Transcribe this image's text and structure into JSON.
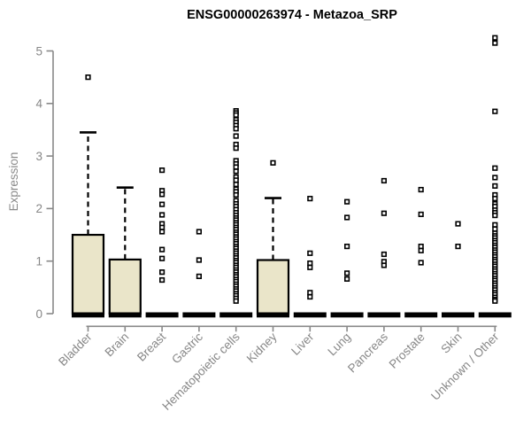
{
  "chart_data": {
    "type": "boxplot",
    "title": "ENSG00000263974 - Metazoa_SRP",
    "ylabel": "Expression",
    "xlabel": "",
    "ylim": [
      0,
      5
    ],
    "yticks": [
      0,
      1,
      2,
      3,
      4,
      5
    ],
    "grid": false,
    "legend": false,
    "categories": [
      "Bladder",
      "Brain",
      "Breast",
      "Gastric",
      "Hematopoietic cells",
      "Kidney",
      "Liver",
      "Lung",
      "Pancreas",
      "Prostate",
      "Skin",
      "Unknown / Other"
    ],
    "colors": {
      "box_fill": "#EAE5C9",
      "box_border": "#000000",
      "median": "#000000",
      "axis": "#888888",
      "text": "#878787",
      "title": "#000000",
      "background": "#ffffff"
    },
    "boxes": [
      {
        "category": "Bladder",
        "q1": 0,
        "median": 0,
        "q3": 1.5,
        "whisker_low": 0,
        "whisker_high": 3.45,
        "outliers": [
          4.5
        ]
      },
      {
        "category": "Brain",
        "q1": 0,
        "median": 0,
        "q3": 1.03,
        "whisker_low": 0,
        "whisker_high": 2.4,
        "outliers": []
      },
      {
        "category": "Breast",
        "q1": 0,
        "median": 0,
        "q3": 0,
        "whisker_low": 0,
        "whisker_high": 0,
        "outliers": [
          2.73,
          2.34,
          2.27,
          2.08,
          1.88,
          1.71,
          1.64,
          1.56,
          1.22,
          1.05,
          0.79,
          0.64
        ]
      },
      {
        "category": "Gastric",
        "q1": 0,
        "median": 0,
        "q3": 0,
        "whisker_low": 0,
        "whisker_high": 0,
        "outliers": [
          1.56,
          1.02,
          0.71
        ]
      },
      {
        "category": "Hematopoietic cells",
        "q1": 0,
        "median": 0,
        "q3": 0,
        "whisker_low": 0,
        "whisker_high": 0,
        "outliers": [
          3.86,
          3.82,
          3.78,
          3.69,
          3.64,
          3.58,
          3.52,
          3.38,
          3.22,
          3.15,
          2.91,
          2.85,
          2.79,
          2.71,
          2.6,
          2.54,
          2.46,
          2.37,
          2.32,
          2.26,
          2.15,
          2.09,
          2.04,
          1.98,
          1.92,
          1.87,
          1.82,
          1.78,
          1.73,
          1.69,
          1.64,
          1.6,
          1.55,
          1.51,
          1.46,
          1.42,
          1.37,
          1.33,
          1.28,
          1.24,
          1.19,
          1.15,
          1.1,
          1.06,
          1.01,
          0.97,
          0.92,
          0.88,
          0.83,
          0.79,
          0.74,
          0.7,
          0.65,
          0.61,
          0.56,
          0.52,
          0.47,
          0.43,
          0.38,
          0.34,
          0.29,
          0.24
        ]
      },
      {
        "category": "Kidney",
        "q1": 0,
        "median": 0,
        "q3": 1.02,
        "whisker_low": 0,
        "whisker_high": 2.2,
        "outliers": [
          2.87
        ]
      },
      {
        "category": "Liver",
        "q1": 0,
        "median": 0,
        "q3": 0,
        "whisker_low": 0,
        "whisker_high": 0,
        "outliers": [
          2.19,
          1.15,
          0.96,
          0.88,
          0.4,
          0.32
        ]
      },
      {
        "category": "Lung",
        "q1": 0,
        "median": 0,
        "q3": 0,
        "whisker_low": 0,
        "whisker_high": 0,
        "outliers": [
          2.13,
          1.83,
          1.28,
          0.77,
          0.66
        ]
      },
      {
        "category": "Pancreas",
        "q1": 0,
        "median": 0,
        "q3": 0,
        "whisker_low": 0,
        "whisker_high": 0,
        "outliers": [
          2.53,
          1.91,
          1.13,
          0.99,
          0.92
        ]
      },
      {
        "category": "Prostate",
        "q1": 0,
        "median": 0,
        "q3": 0,
        "whisker_low": 0,
        "whisker_high": 0,
        "outliers": [
          2.36,
          1.89,
          1.28,
          1.2,
          0.97
        ]
      },
      {
        "category": "Skin",
        "q1": 0,
        "median": 0,
        "q3": 0,
        "whisker_low": 0,
        "whisker_high": 0,
        "outliers": [
          1.71,
          1.28
        ]
      },
      {
        "category": "Unknown / Other",
        "q1": 0,
        "median": 0,
        "q3": 0,
        "whisker_low": 0,
        "whisker_high": 0,
        "outliers": [
          5.25,
          5.15,
          3.85,
          2.77,
          2.59,
          2.43,
          2.26,
          2.19,
          2.09,
          2.04,
          1.97,
          1.92,
          1.87,
          1.69,
          1.61,
          1.53,
          1.48,
          1.44,
          1.39,
          1.35,
          1.3,
          1.26,
          1.21,
          1.17,
          1.12,
          1.08,
          1.03,
          0.99,
          0.94,
          0.9,
          0.85,
          0.81,
          0.76,
          0.72,
          0.67,
          0.63,
          0.58,
          0.54,
          0.49,
          0.45,
          0.4,
          0.36,
          0.31,
          0.27,
          0.24
        ]
      }
    ]
  }
}
